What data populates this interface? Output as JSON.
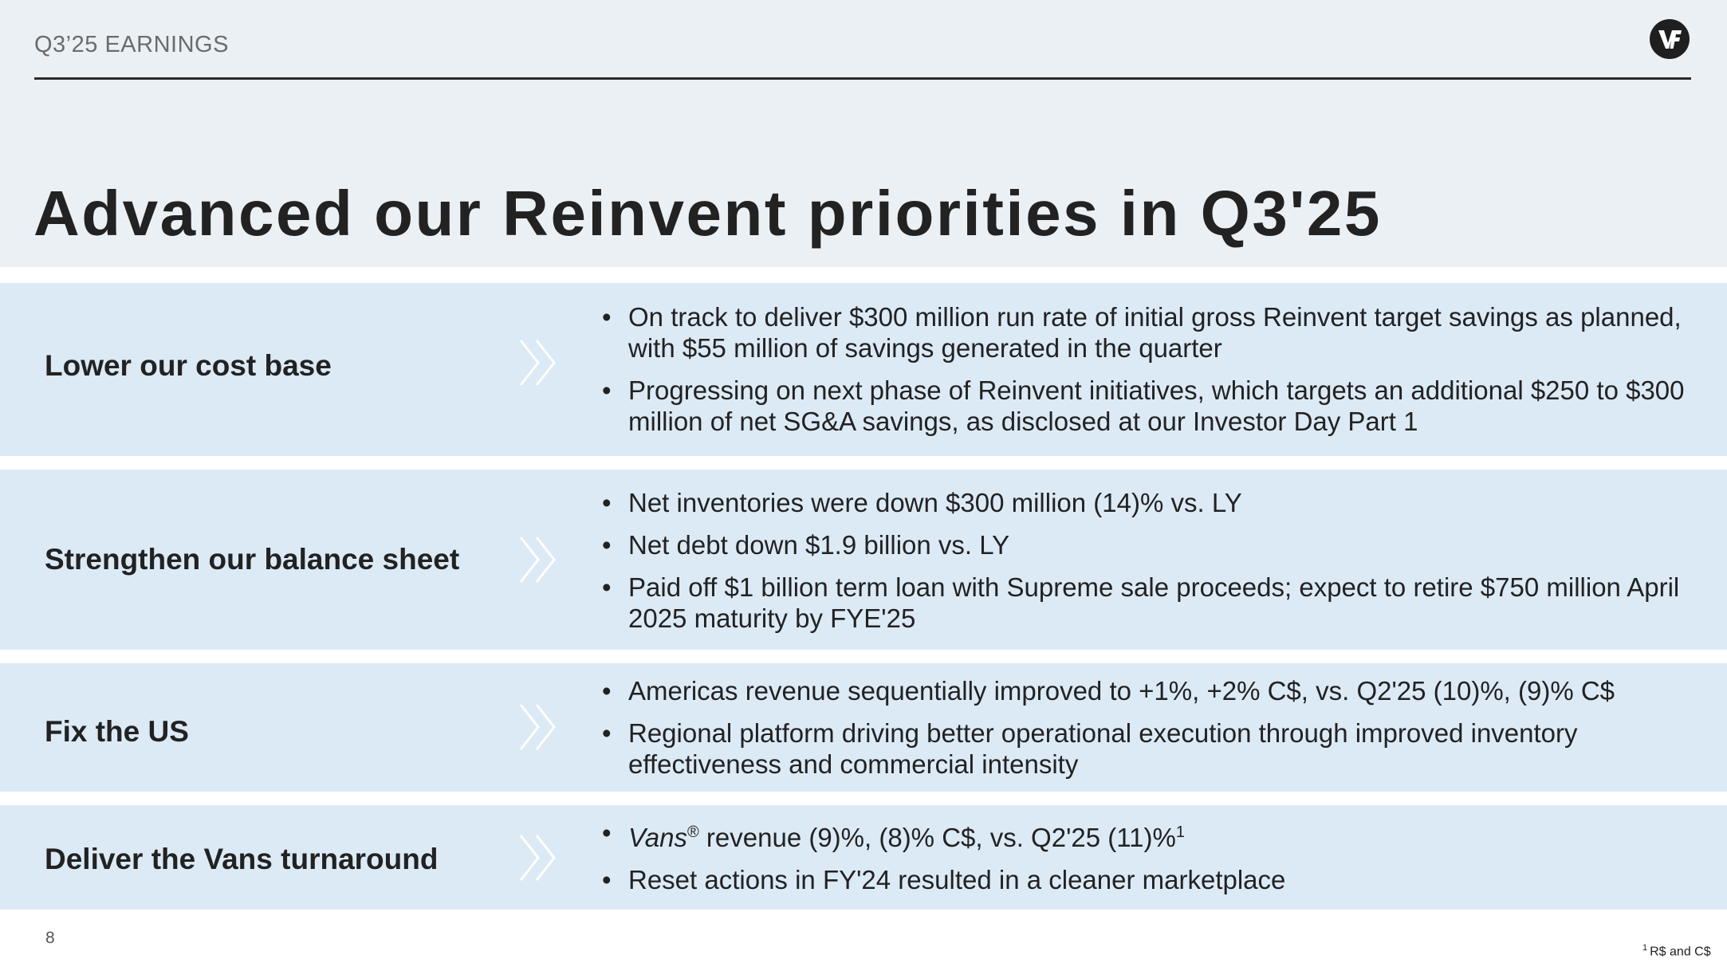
{
  "header": {
    "label": "Q3’25 EARNINGS",
    "logo_icon": "vf-logo-icon"
  },
  "title": "Advanced our Reinvent priorities in Q3'25",
  "rows": [
    {
      "label": "Lower our cost base",
      "bullets": [
        "On track to deliver $300 million run rate of initial gross Reinvent target savings as planned, with $55 million of savings generated in the quarter",
        "Progressing on next phase of Reinvent initiatives, which targets an additional $250 to $300 million of net SG&A savings, as disclosed at our Investor Day Part 1"
      ]
    },
    {
      "label": "Strengthen our balance sheet",
      "bullets": [
        "Net inventories were down $300 million (14)% vs. LY",
        "Net debt down $1.9 billion vs. LY",
        "Paid off $1 billion term loan with Supreme sale proceeds; expect to retire $750 million April 2025 maturity by FYE'25"
      ]
    },
    {
      "label": "Fix the US",
      "bullets": [
        "Americas revenue sequentially improved to +1%, +2% C$, vs. Q2'25 (10)%, (9)% C$",
        "Regional platform driving better operational execution through improved inventory effectiveness and commercial intensity"
      ]
    },
    {
      "label": "Deliver the Vans turnaround",
      "vans_bullet": {
        "brand": "Vans",
        "reg": "®",
        "text": " revenue (9)%, (8)% C$, vs. Q2'25 (11)%",
        "sup": "1"
      },
      "bullets": [
        "Reset actions in FY'24 resulted in a cleaner marketplace"
      ]
    }
  ],
  "chevron_icon": "double-chevron-right-icon",
  "page_number": "8",
  "footnote": {
    "mark": "1",
    "text": "R$ and C$"
  },
  "colors": {
    "top_band": "#ebf0f5",
    "row_band": "#dceaf6",
    "chevron": "#ffffff",
    "title": "#222222"
  }
}
